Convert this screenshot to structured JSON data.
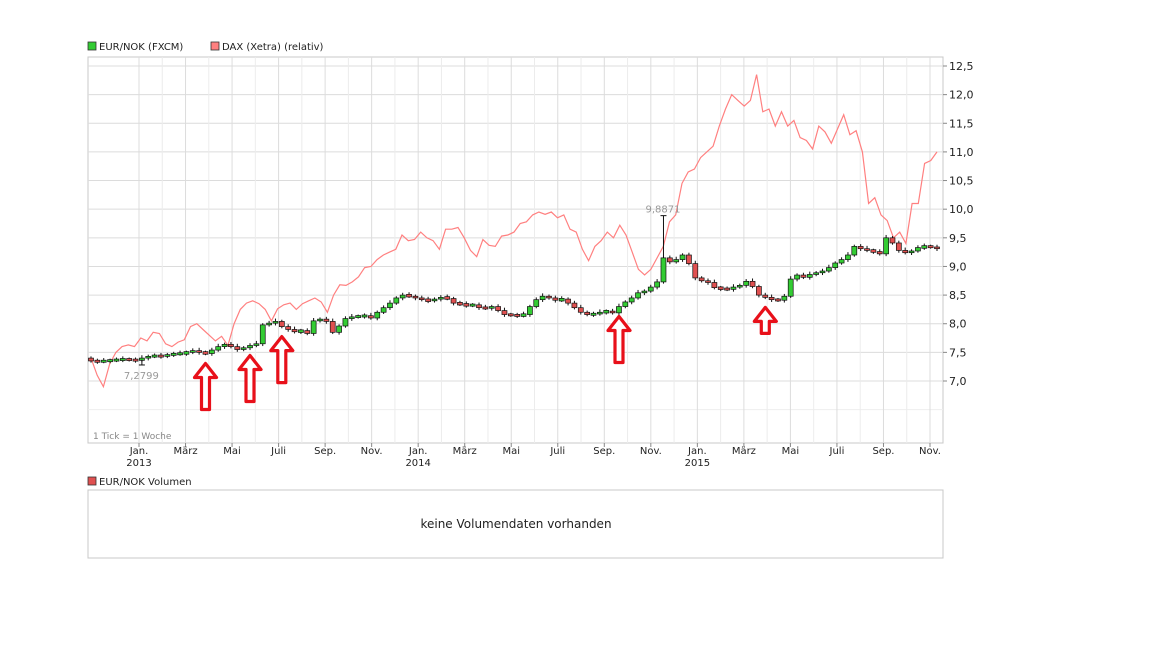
{
  "chart_data": [
    {
      "type": "candlestick",
      "legend": [
        {
          "label": "EUR/NOK (FXCM)",
          "color": "#33cc33"
        },
        {
          "label": "DAX (Xetra) (relativ)",
          "color": "#ff8080"
        }
      ],
      "y_ticks": [
        "12,5",
        "12,0",
        "11,5",
        "11,0",
        "10,5",
        "10,0",
        "9,5",
        "9,0",
        "8,5",
        "8,0",
        "7,5",
        "7,0"
      ],
      "x_ticks": [
        {
          "label": "Jan.",
          "sub": "2013"
        },
        {
          "label": "März",
          "sub": ""
        },
        {
          "label": "Mai",
          "sub": ""
        },
        {
          "label": "Juli",
          "sub": ""
        },
        {
          "label": "Sep.",
          "sub": ""
        },
        {
          "label": "Nov.",
          "sub": ""
        },
        {
          "label": "Jan.",
          "sub": "2014"
        },
        {
          "label": "März",
          "sub": ""
        },
        {
          "label": "Mai",
          "sub": ""
        },
        {
          "label": "Juli",
          "sub": ""
        },
        {
          "label": "Sep.",
          "sub": ""
        },
        {
          "label": "Nov.",
          "sub": ""
        },
        {
          "label": "Jan.",
          "sub": "2015"
        },
        {
          "label": "März",
          "sub": ""
        },
        {
          "label": "Mai",
          "sub": ""
        },
        {
          "label": "Juli",
          "sub": ""
        },
        {
          "label": "Sep.",
          "sub": ""
        },
        {
          "label": "Nov.",
          "sub": ""
        }
      ],
      "annotations": [
        {
          "text": "7,2799",
          "value": 7.2799
        },
        {
          "text": "9,8871",
          "value": 9.8871
        }
      ],
      "footnote": "1 Tick = 1 Woche",
      "colors": {
        "up": "#33cc33",
        "down": "#e05050",
        "dax": "#ff8080",
        "arrow": "#e8101a"
      },
      "series": [
        {
          "name": "EUR/NOK (FXCM)",
          "close": [
            7.35,
            7.34,
            7.35,
            7.36,
            7.37,
            7.38,
            7.37,
            7.36,
            7.4,
            7.43,
            7.44,
            7.43,
            7.46,
            7.47,
            7.48,
            7.5,
            7.53,
            7.5,
            7.48,
            7.54,
            7.6,
            7.64,
            7.6,
            7.55,
            7.58,
            7.62,
            7.65,
            7.98,
            8.01,
            8.04,
            7.95,
            7.9,
            7.86,
            7.88,
            7.83,
            8.05,
            8.08,
            8.04,
            7.85,
            7.96,
            8.09,
            8.12,
            8.13,
            8.14,
            8.1,
            8.2,
            8.28,
            8.36,
            8.45,
            8.5,
            8.48,
            8.45,
            8.42,
            8.4,
            8.43,
            8.46,
            8.44,
            8.36,
            8.34,
            8.32,
            8.33,
            8.28,
            8.27,
            8.3,
            8.23,
            8.16,
            8.15,
            8.14,
            8.16,
            8.3,
            8.42,
            8.48,
            8.45,
            8.41,
            8.43,
            8.36,
            8.28,
            8.2,
            8.16,
            8.17,
            8.2,
            8.22,
            8.19,
            8.3,
            8.38,
            8.45,
            8.54,
            8.57,
            8.64,
            8.73,
            9.15,
            9.08,
            9.12,
            9.2,
            9.05,
            8.8,
            8.75,
            8.72,
            8.63,
            8.61,
            8.6,
            8.64,
            8.67,
            8.74,
            8.65,
            8.5,
            8.46,
            8.42,
            8.41,
            8.48,
            8.78,
            8.85,
            8.81,
            8.86,
            8.89,
            8.92,
            8.98,
            9.06,
            9.12,
            9.2,
            9.35,
            9.31,
            9.28,
            9.26,
            9.22,
            9.5,
            9.41,
            9.28,
            9.24,
            9.27,
            9.33,
            9.35,
            9.34,
            9.31
          ]
        },
        {
          "name": "DAX (Xetra) (relativ)",
          "values": [
            7.4,
            7.1,
            6.9,
            7.3,
            7.5,
            7.6,
            7.63,
            7.6,
            7.75,
            7.7,
            7.85,
            7.83,
            7.65,
            7.6,
            7.68,
            7.72,
            7.95,
            8.0,
            7.9,
            7.8,
            7.7,
            7.78,
            7.62,
            8.0,
            8.25,
            8.36,
            8.4,
            8.35,
            8.25,
            8.05,
            8.26,
            8.33,
            8.36,
            8.25,
            8.35,
            8.4,
            8.45,
            8.38,
            8.2,
            8.5,
            8.68,
            8.67,
            8.73,
            8.82,
            8.98,
            9.0,
            9.12,
            9.2,
            9.25,
            9.3,
            9.55,
            9.45,
            9.47,
            9.6,
            9.5,
            9.45,
            9.3,
            9.65,
            9.65,
            9.68,
            9.5,
            9.28,
            9.17,
            9.47,
            9.37,
            9.35,
            9.53,
            9.55,
            9.6,
            9.75,
            9.78,
            9.9,
            9.95,
            9.91,
            9.95,
            9.85,
            9.9,
            9.65,
            9.6,
            9.3,
            9.1,
            9.35,
            9.45,
            9.6,
            9.5,
            9.72,
            9.55,
            9.25,
            8.95,
            8.85,
            8.95,
            9.15,
            9.35,
            9.78,
            9.9,
            10.45,
            10.65,
            10.7,
            10.9,
            11.0,
            11.1,
            11.45,
            11.75,
            12.0,
            11.9,
            11.8,
            11.9,
            12.35,
            11.7,
            11.75,
            11.45,
            11.7,
            11.45,
            11.55,
            11.25,
            11.2,
            11.05,
            11.45,
            11.35,
            11.15,
            11.4,
            11.65,
            11.3,
            11.37,
            11.0,
            10.1,
            10.2,
            9.9,
            9.8,
            9.5,
            9.6,
            9.4,
            10.1,
            10.1,
            10.8,
            10.85,
            11.0
          ]
        }
      ],
      "marker_indices": [
        18,
        25,
        30,
        83,
        106
      ]
    },
    {
      "type": "volume",
      "legend": [
        {
          "label": "EUR/NOK Volumen",
          "color": "#e05050"
        }
      ],
      "empty_message": "keine Volumendaten vorhanden"
    }
  ]
}
